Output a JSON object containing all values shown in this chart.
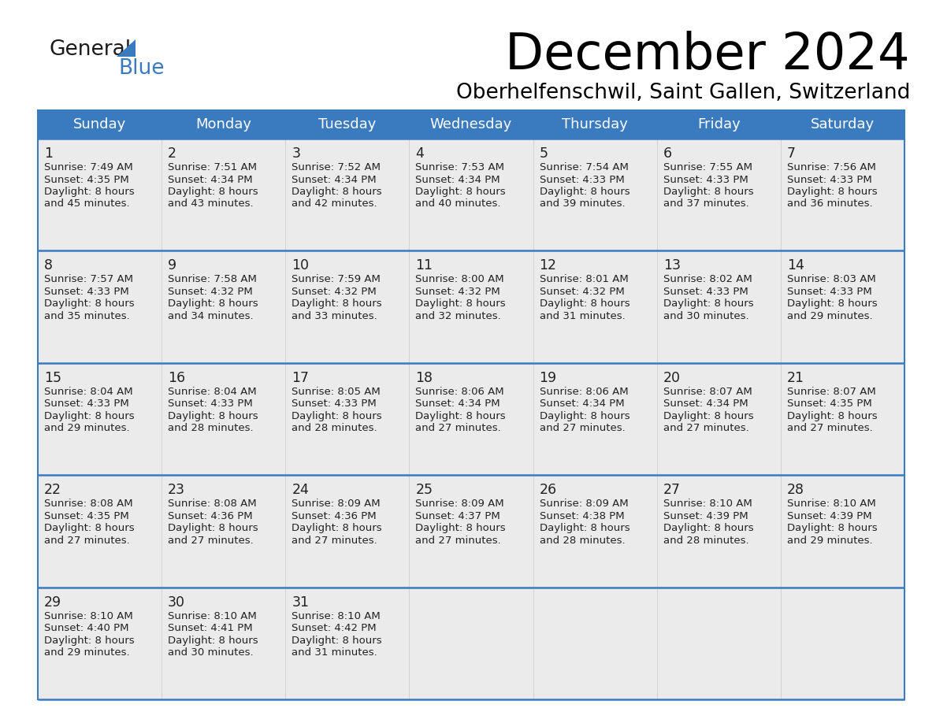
{
  "title": "December 2024",
  "subtitle": "Oberhelfenschwil, Saint Gallen, Switzerland",
  "header_color": "#3a7abf",
  "header_text_color": "#ffffff",
  "cell_bg_color": "#ebebeb",
  "border_color": "#3a7abf",
  "separator_color": "#3a7abf",
  "text_color": "#222222",
  "days_of_week": [
    "Sunday",
    "Monday",
    "Tuesday",
    "Wednesday",
    "Thursday",
    "Friday",
    "Saturday"
  ],
  "weeks": [
    [
      {
        "day": 1,
        "sunrise": "7:49 AM",
        "sunset": "4:35 PM",
        "daylight_hrs": 8,
        "daylight_min": 45
      },
      {
        "day": 2,
        "sunrise": "7:51 AM",
        "sunset": "4:34 PM",
        "daylight_hrs": 8,
        "daylight_min": 43
      },
      {
        "day": 3,
        "sunrise": "7:52 AM",
        "sunset": "4:34 PM",
        "daylight_hrs": 8,
        "daylight_min": 42
      },
      {
        "day": 4,
        "sunrise": "7:53 AM",
        "sunset": "4:34 PM",
        "daylight_hrs": 8,
        "daylight_min": 40
      },
      {
        "day": 5,
        "sunrise": "7:54 AM",
        "sunset": "4:33 PM",
        "daylight_hrs": 8,
        "daylight_min": 39
      },
      {
        "day": 6,
        "sunrise": "7:55 AM",
        "sunset": "4:33 PM",
        "daylight_hrs": 8,
        "daylight_min": 37
      },
      {
        "day": 7,
        "sunrise": "7:56 AM",
        "sunset": "4:33 PM",
        "daylight_hrs": 8,
        "daylight_min": 36
      }
    ],
    [
      {
        "day": 8,
        "sunrise": "7:57 AM",
        "sunset": "4:33 PM",
        "daylight_hrs": 8,
        "daylight_min": 35
      },
      {
        "day": 9,
        "sunrise": "7:58 AM",
        "sunset": "4:32 PM",
        "daylight_hrs": 8,
        "daylight_min": 34
      },
      {
        "day": 10,
        "sunrise": "7:59 AM",
        "sunset": "4:32 PM",
        "daylight_hrs": 8,
        "daylight_min": 33
      },
      {
        "day": 11,
        "sunrise": "8:00 AM",
        "sunset": "4:32 PM",
        "daylight_hrs": 8,
        "daylight_min": 32
      },
      {
        "day": 12,
        "sunrise": "8:01 AM",
        "sunset": "4:32 PM",
        "daylight_hrs": 8,
        "daylight_min": 31
      },
      {
        "day": 13,
        "sunrise": "8:02 AM",
        "sunset": "4:33 PM",
        "daylight_hrs": 8,
        "daylight_min": 30
      },
      {
        "day": 14,
        "sunrise": "8:03 AM",
        "sunset": "4:33 PM",
        "daylight_hrs": 8,
        "daylight_min": 29
      }
    ],
    [
      {
        "day": 15,
        "sunrise": "8:04 AM",
        "sunset": "4:33 PM",
        "daylight_hrs": 8,
        "daylight_min": 29
      },
      {
        "day": 16,
        "sunrise": "8:04 AM",
        "sunset": "4:33 PM",
        "daylight_hrs": 8,
        "daylight_min": 28
      },
      {
        "day": 17,
        "sunrise": "8:05 AM",
        "sunset": "4:33 PM",
        "daylight_hrs": 8,
        "daylight_min": 28
      },
      {
        "day": 18,
        "sunrise": "8:06 AM",
        "sunset": "4:34 PM",
        "daylight_hrs": 8,
        "daylight_min": 27
      },
      {
        "day": 19,
        "sunrise": "8:06 AM",
        "sunset": "4:34 PM",
        "daylight_hrs": 8,
        "daylight_min": 27
      },
      {
        "day": 20,
        "sunrise": "8:07 AM",
        "sunset": "4:34 PM",
        "daylight_hrs": 8,
        "daylight_min": 27
      },
      {
        "day": 21,
        "sunrise": "8:07 AM",
        "sunset": "4:35 PM",
        "daylight_hrs": 8,
        "daylight_min": 27
      }
    ],
    [
      {
        "day": 22,
        "sunrise": "8:08 AM",
        "sunset": "4:35 PM",
        "daylight_hrs": 8,
        "daylight_min": 27
      },
      {
        "day": 23,
        "sunrise": "8:08 AM",
        "sunset": "4:36 PM",
        "daylight_hrs": 8,
        "daylight_min": 27
      },
      {
        "day": 24,
        "sunrise": "8:09 AM",
        "sunset": "4:36 PM",
        "daylight_hrs": 8,
        "daylight_min": 27
      },
      {
        "day": 25,
        "sunrise": "8:09 AM",
        "sunset": "4:37 PM",
        "daylight_hrs": 8,
        "daylight_min": 27
      },
      {
        "day": 26,
        "sunrise": "8:09 AM",
        "sunset": "4:38 PM",
        "daylight_hrs": 8,
        "daylight_min": 28
      },
      {
        "day": 27,
        "sunrise": "8:10 AM",
        "sunset": "4:39 PM",
        "daylight_hrs": 8,
        "daylight_min": 28
      },
      {
        "day": 28,
        "sunrise": "8:10 AM",
        "sunset": "4:39 PM",
        "daylight_hrs": 8,
        "daylight_min": 29
      }
    ],
    [
      {
        "day": 29,
        "sunrise": "8:10 AM",
        "sunset": "4:40 PM",
        "daylight_hrs": 8,
        "daylight_min": 29
      },
      {
        "day": 30,
        "sunrise": "8:10 AM",
        "sunset": "4:41 PM",
        "daylight_hrs": 8,
        "daylight_min": 30
      },
      {
        "day": 31,
        "sunrise": "8:10 AM",
        "sunset": "4:42 PM",
        "daylight_hrs": 8,
        "daylight_min": 31
      },
      null,
      null,
      null,
      null
    ]
  ],
  "logo_general_color": "#1a1a1a",
  "logo_blue_color": "#3a7abf",
  "logo_triangle_color": "#3a7abf"
}
